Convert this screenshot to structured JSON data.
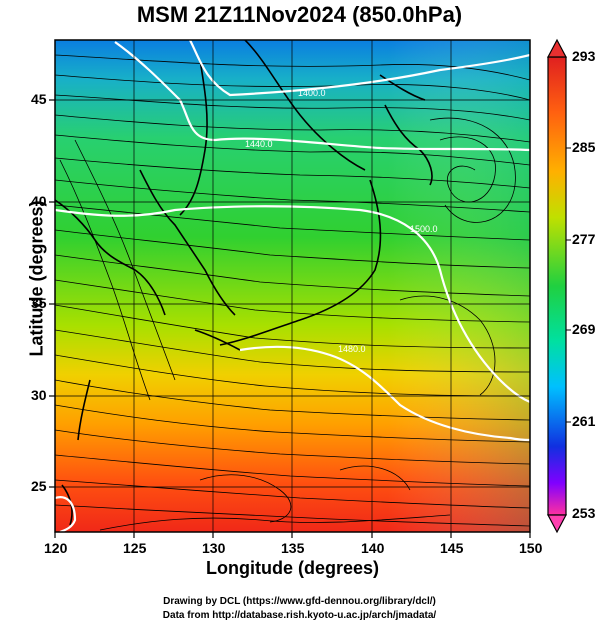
{
  "title": "MSM 21Z11Nov2024 (850.0hPa)",
  "x_axis": {
    "label": "Longitude (degrees)",
    "ticks": [
      "120",
      "125",
      "130",
      "135",
      "140",
      "145",
      "150"
    ],
    "range": [
      120,
      150
    ]
  },
  "y_axis": {
    "label": "Latitude  (degrees)",
    "ticks": [
      "25",
      "30",
      "35",
      "40",
      "45"
    ],
    "range": [
      22.4,
      47.6
    ]
  },
  "colorbar": {
    "ticks": [
      "293",
      "285",
      "277",
      "269",
      "261",
      "253"
    ],
    "min": 253,
    "max": 293,
    "colors": [
      "#ff30a0",
      "#8000ff",
      "#1030e0",
      "#00c0ff",
      "#00e0a0",
      "#20d040",
      "#c0e000",
      "#ffb000",
      "#ff5010",
      "#e02020"
    ]
  },
  "contours": {
    "labels": [
      "1500.0",
      "1480.0",
      "1460.0",
      "1440.0",
      "1400.0"
    ],
    "color": "#ffffff"
  },
  "credits": {
    "line1": "Drawing by DCL (https://www.gfd-dennou.org/library/dcl/)",
    "line2": "Data from http://database.rish.kyoto-u.ac.jp/arch/jmadata/"
  }
}
